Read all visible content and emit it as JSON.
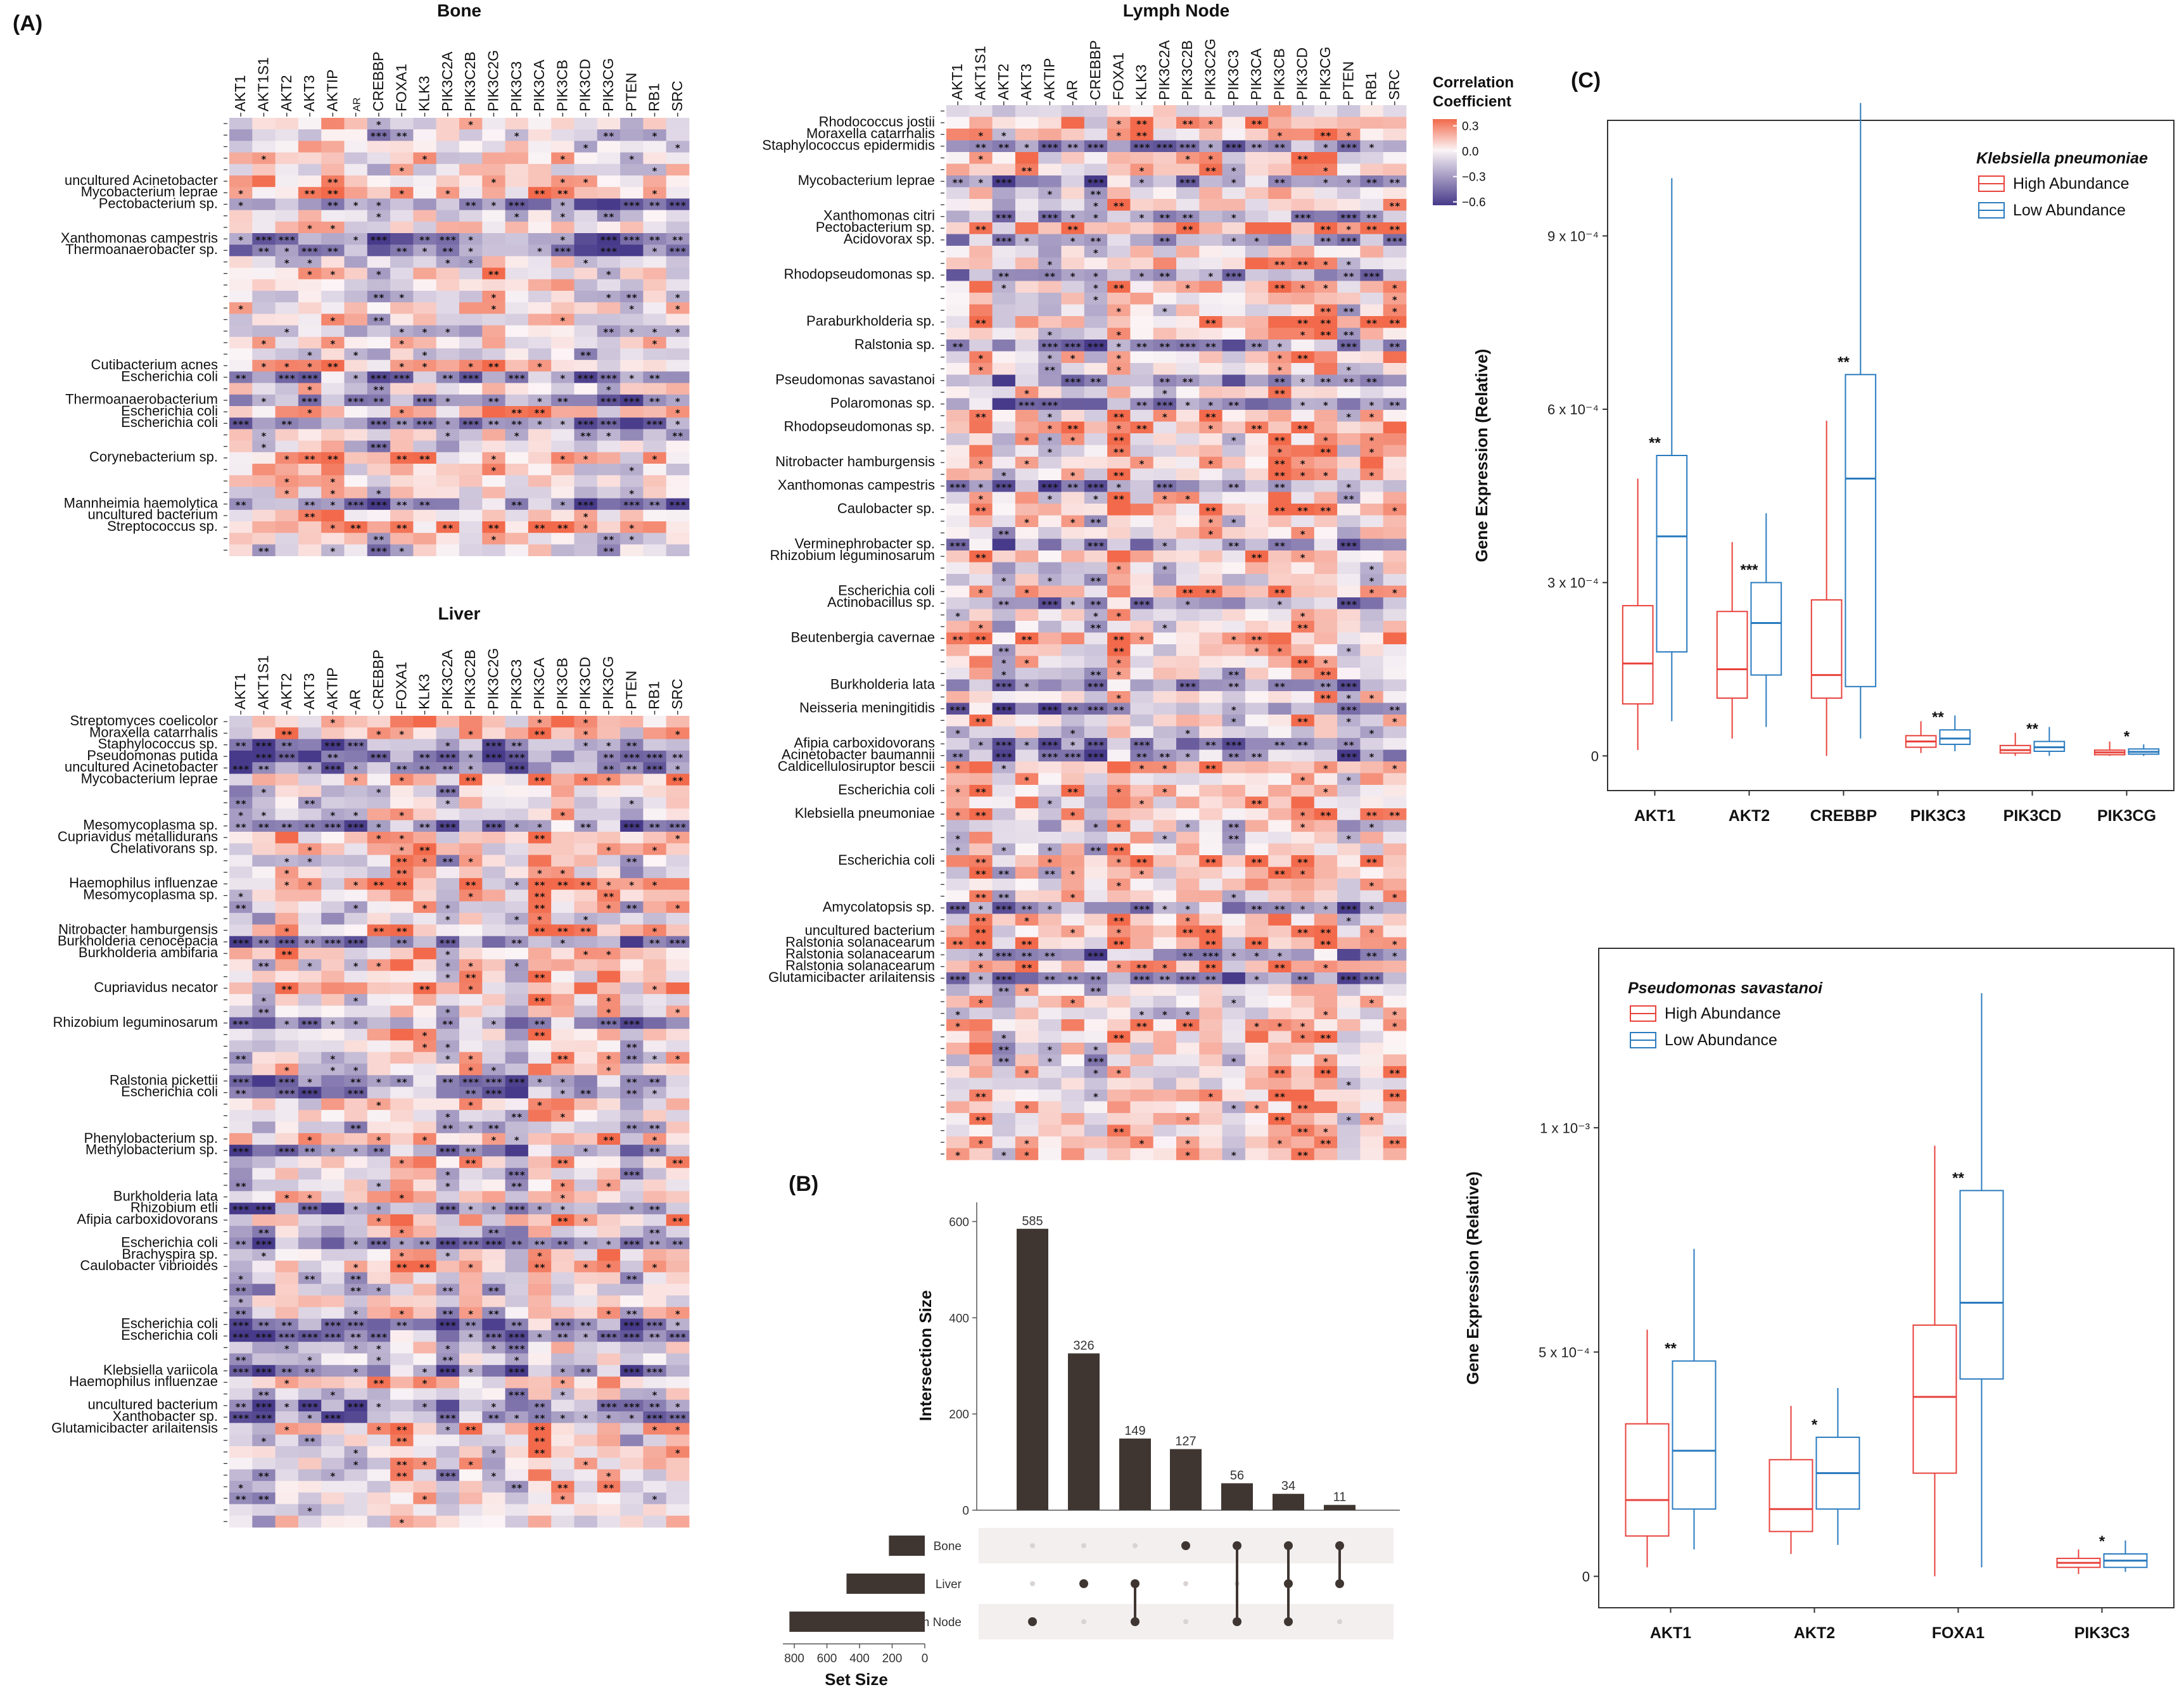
{
  "panel_labels": {
    "a": "(A)",
    "b": "(B)",
    "c": "(C)"
  },
  "legend": {
    "title_line1": "Correlation",
    "title_line2": "Coefficient",
    "ticks": [
      "0.3",
      "0.0",
      "−0.3",
      "−0.6"
    ],
    "colors": {
      "pos": "#f26a4b",
      "zero": "#fbf4f6",
      "neg": "#473a8a"
    }
  },
  "chart_data": [
    {
      "type": "heatmap",
      "title": "Bone",
      "genes": [
        "AKT1",
        "AKT1S1",
        "AKT2",
        "AKT3",
        "AKTIP",
        "AR",
        "CREBBP",
        "FOXA1",
        "KLK3",
        "PIK3C2A",
        "PIK3C2B",
        "PIK3C2G",
        "PIK3C3",
        "PIK3CA",
        "PIK3CB",
        "PIK3CD",
        "PIK3CG",
        "PTEN",
        "RB1",
        "SRC"
      ],
      "small_genes": [
        "AR"
      ],
      "row_count": 38,
      "labelled_rows": [
        {
          "row": 5,
          "label": "uncultured Acinetobacter"
        },
        {
          "row": 6,
          "label": "Mycobacterium leprae"
        },
        {
          "row": 7,
          "label": "Pectobacterium sp."
        },
        {
          "row": 10,
          "label": "Xanthomonas campestris"
        },
        {
          "row": 11,
          "label": "Thermoanaerobacter sp."
        },
        {
          "row": 21,
          "label": "Cutibacterium acnes"
        },
        {
          "row": 22,
          "label": "Escherichia coli"
        },
        {
          "row": 24,
          "label": "Thermoanaerobacterium"
        },
        {
          "row": 25,
          "label": "Escherichia coli"
        },
        {
          "row": 26,
          "label": "Escherichia coli"
        },
        {
          "row": 29,
          "label": "Corynebacterium sp."
        },
        {
          "row": 33,
          "label": "Mannheimia haemolytica"
        },
        {
          "row": 34,
          "label": "uncultured bacterium"
        },
        {
          "row": 35,
          "label": "Streptococcus sp."
        }
      ]
    },
    {
      "type": "heatmap",
      "title": "Liver",
      "genes": [
        "AKT1",
        "AKT1S1",
        "AKT2",
        "AKT3",
        "AKTIP",
        "AR",
        "CREBBP",
        "FOXA1",
        "KLK3",
        "PIK3C2A",
        "PIK3C2B",
        "PIK3C2G",
        "PIK3C3",
        "PIK3CA",
        "PIK3CB",
        "PIK3CD",
        "PIK3CG",
        "PTEN",
        "RB1",
        "SRC"
      ],
      "small_genes": [],
      "row_count": 70,
      "labelled_rows": [
        {
          "row": 0,
          "label": "Streptomyces coelicolor"
        },
        {
          "row": 1,
          "label": "Moraxella catarrhalis"
        },
        {
          "row": 2,
          "label": "Staphylococcus sp."
        },
        {
          "row": 3,
          "label": "Pseudomonas putida"
        },
        {
          "row": 4,
          "label": "uncultured Acinetobacter"
        },
        {
          "row": 5,
          "label": "Mycobacterium leprae"
        },
        {
          "row": 9,
          "label": "Mesomycoplasma sp."
        },
        {
          "row": 10,
          "label": "Cupriavidus metallidurans"
        },
        {
          "row": 11,
          "label": "Chelativorans sp."
        },
        {
          "row": 14,
          "label": "Haemophilus influenzae"
        },
        {
          "row": 15,
          "label": "Mesomycoplasma sp."
        },
        {
          "row": 18,
          "label": "Nitrobacter hamburgensis"
        },
        {
          "row": 19,
          "label": "Burkholderia cenocepacia"
        },
        {
          "row": 20,
          "label": "Burkholderia ambifaria"
        },
        {
          "row": 23,
          "label": "Cupriavidus necator"
        },
        {
          "row": 26,
          "label": "Rhizobium leguminosarum"
        },
        {
          "row": 31,
          "label": "Ralstonia pickettii"
        },
        {
          "row": 32,
          "label": "Escherichia coli"
        },
        {
          "row": 36,
          "label": "Phenylobacterium sp."
        },
        {
          "row": 37,
          "label": "Methylobacterium sp."
        },
        {
          "row": 41,
          "label": "Burkholderia lata"
        },
        {
          "row": 42,
          "label": "Rhizobium etli"
        },
        {
          "row": 43,
          "label": "Afipia carboxidovorans"
        },
        {
          "row": 45,
          "label": "Escherichia coli"
        },
        {
          "row": 46,
          "label": "Brachyspira sp."
        },
        {
          "row": 47,
          "label": "Caulobacter vibrioides"
        },
        {
          "row": 52,
          "label": "Escherichia coli"
        },
        {
          "row": 53,
          "label": "Escherichia coli"
        },
        {
          "row": 56,
          "label": "Klebsiella variicola"
        },
        {
          "row": 57,
          "label": "Haemophilus influenzae"
        },
        {
          "row": 59,
          "label": "uncultured bacterium"
        },
        {
          "row": 60,
          "label": "Xanthobacter sp."
        },
        {
          "row": 61,
          "label": "Glutamicibacter arilaitensis"
        }
      ]
    },
    {
      "type": "heatmap",
      "title": "Lymph Node",
      "genes": [
        "AKT1",
        "AKT1S1",
        "AKT2",
        "AKT3",
        "AKTIP",
        "AR",
        "CREBBP",
        "FOXA1",
        "KLK3",
        "PIK3C2A",
        "PIK3C2B",
        "PIK3C2G",
        "PIK3C3",
        "PIK3CA",
        "PIK3CB",
        "PIK3CD",
        "PIK3CG",
        "PTEN",
        "RB1",
        "SRC"
      ],
      "small_genes": [],
      "row_count": 90,
      "labelled_rows": [
        {
          "row": 1,
          "label": "Rhodococcus jostii"
        },
        {
          "row": 2,
          "label": "Moraxella catarrhalis"
        },
        {
          "row": 3,
          "label": "Staphylococcus epidermidis"
        },
        {
          "row": 6,
          "label": "Mycobacterium leprae"
        },
        {
          "row": 9,
          "label": "Xanthomonas citri"
        },
        {
          "row": 10,
          "label": "Pectobacterium sp."
        },
        {
          "row": 11,
          "label": "Acidovorax sp."
        },
        {
          "row": 14,
          "label": "Rhodopseudomonas sp."
        },
        {
          "row": 18,
          "label": "Paraburkholderia sp."
        },
        {
          "row": 20,
          "label": "Ralstonia sp."
        },
        {
          "row": 23,
          "label": "Pseudomonas savastanoi"
        },
        {
          "row": 25,
          "label": "Polaromonas sp."
        },
        {
          "row": 27,
          "label": "Rhodopseudomonas sp."
        },
        {
          "row": 30,
          "label": "Nitrobacter hamburgensis"
        },
        {
          "row": 32,
          "label": "Xanthomonas campestris"
        },
        {
          "row": 34,
          "label": "Caulobacter sp."
        },
        {
          "row": 37,
          "label": "Verminephrobacter sp."
        },
        {
          "row": 38,
          "label": "Rhizobium leguminosarum"
        },
        {
          "row": 41,
          "label": "Escherichia coli"
        },
        {
          "row": 42,
          "label": "Actinobacillus sp."
        },
        {
          "row": 45,
          "label": "Beutenbergia cavernae"
        },
        {
          "row": 49,
          "label": "Burkholderia lata"
        },
        {
          "row": 51,
          "label": "Neisseria meningitidis"
        },
        {
          "row": 54,
          "label": "Afipia carboxidovorans"
        },
        {
          "row": 55,
          "label": "Acinetobacter baumannii"
        },
        {
          "row": 56,
          "label": "Caldicellulosiruptor bescii"
        },
        {
          "row": 58,
          "label": "Escherichia coli"
        },
        {
          "row": 60,
          "label": "Klebsiella pneumoniae"
        },
        {
          "row": 64,
          "label": "Escherichia coli"
        },
        {
          "row": 68,
          "label": "Amycolatopsis sp."
        },
        {
          "row": 70,
          "label": "uncultured bacterium"
        },
        {
          "row": 71,
          "label": "Ralstonia solanacearum"
        },
        {
          "row": 72,
          "label": "Ralstonia solanacearum"
        },
        {
          "row": 73,
          "label": "Ralstonia solanacearum"
        },
        {
          "row": 74,
          "label": "Glutamicibacter arilaitensis"
        }
      ]
    },
    {
      "type": "bar",
      "subtype": "upset",
      "intersection_sizes": [
        585,
        326,
        149,
        127,
        56,
        34,
        11
      ],
      "intersection_sets": [
        [
          "Lymph Node"
        ],
        [
          "Liver"
        ],
        [
          "Liver",
          "Lymph Node"
        ],
        [
          "Bone"
        ],
        [
          "Bone",
          "Lymph Node"
        ],
        [
          "Bone",
          "Liver",
          "Lymph Node"
        ],
        [
          "Bone",
          "Liver"
        ]
      ],
      "sets": [
        "Bone",
        "Liver",
        "Lymph Node"
      ],
      "set_sizes": [
        220,
        480,
        830
      ],
      "ylabel": "Intersection Size",
      "yticks": [
        "0",
        "200",
        "400",
        "600"
      ],
      "ylim": [
        0,
        640
      ],
      "xlabel_sets": "Set Size",
      "set_size_ticks": [
        "800",
        "600",
        "400",
        "200",
        "0"
      ],
      "set_size_max": 870
    },
    {
      "type": "box",
      "title": "Klebsiella pneumoniae",
      "series_names": [
        "High Abundance",
        "Low Abundance"
      ],
      "series_colors": [
        "#e8423c",
        "#2a7bbf"
      ],
      "ylabel": "Gene Expression (Relative)",
      "ylim": [
        -6e-05,
        0.0011
      ],
      "yticks": [
        {
          "value": 0,
          "label": "0"
        },
        {
          "value": 0.0003,
          "label": "3 x 10⁻⁴"
        },
        {
          "value": 0.0006,
          "label": "6 x 10⁻⁴"
        },
        {
          "value": 0.0009,
          "label": "9 x 10⁻⁴"
        }
      ],
      "categories": [
        "AKT1",
        "AKT2",
        "CREBBP",
        "PIK3C3",
        "PIK3CD",
        "PIK3CG"
      ],
      "significance": [
        "**",
        "***",
        "**",
        "**",
        "**",
        "*"
      ],
      "boxes": {
        "high": [
          [
            1e-05,
            9e-05,
            0.00016,
            0.00026,
            0.00048
          ],
          [
            3e-05,
            0.0001,
            0.00015,
            0.00025,
            0.00037
          ],
          [
            0.0,
            0.0001,
            0.00014,
            0.00027,
            0.00058
          ],
          [
            5e-06,
            1.5e-05,
            2.5e-05,
            3.5e-05,
            6e-05
          ],
          [
            0.0,
            5e-06,
            1e-05,
            1.8e-05,
            4e-05
          ],
          [
            0.0,
            2e-06,
            6e-06,
            1e-05,
            2.5e-05
          ]
        ],
        "low": [
          [
            6e-05,
            0.00018,
            0.00038,
            0.00052,
            0.001
          ],
          [
            5e-05,
            0.00014,
            0.00023,
            0.0003,
            0.00042
          ],
          [
            3e-05,
            0.00012,
            0.00048,
            0.00066,
            0.00113
          ],
          [
            8e-06,
            2e-05,
            3e-05,
            4.5e-05,
            7e-05
          ],
          [
            0.0,
            8e-06,
            1.5e-05,
            2.5e-05,
            5e-05
          ],
          [
            0.0,
            3e-06,
            7e-06,
            1.2e-05,
            2e-05
          ]
        ]
      }
    },
    {
      "type": "box",
      "title": "Pseudomonas savastanoi",
      "series_names": [
        "High Abundance",
        "Low Abundance"
      ],
      "series_colors": [
        "#e8423c",
        "#2a7bbf"
      ],
      "ylabel": "Gene Expression (Relative)",
      "ylim": [
        -7e-05,
        0.0014
      ],
      "yticks": [
        {
          "value": 0,
          "label": "0"
        },
        {
          "value": 0.0005,
          "label": "5 x 10⁻⁴"
        },
        {
          "value": 0.001,
          "label": "1 x 10⁻³"
        }
      ],
      "categories": [
        "AKT1",
        "AKT2",
        "FOXA1",
        "PIK3C3"
      ],
      "significance": [
        "**",
        "*",
        "**",
        "*"
      ],
      "boxes": {
        "high": [
          [
            2e-05,
            9e-05,
            0.00017,
            0.00034,
            0.00055
          ],
          [
            5e-05,
            0.0001,
            0.00015,
            0.00026,
            0.00038
          ],
          [
            0.0,
            0.00023,
            0.0004,
            0.00056,
            0.00096
          ],
          [
            5e-06,
            2e-05,
            3e-05,
            4e-05,
            6e-05
          ]
        ],
        "low": [
          [
            6e-05,
            0.00015,
            0.00028,
            0.00048,
            0.00073
          ],
          [
            7e-05,
            0.00015,
            0.00023,
            0.00031,
            0.00042
          ],
          [
            2e-05,
            0.00044,
            0.00061,
            0.00086,
            0.0013
          ],
          [
            1e-05,
            2e-05,
            3.5e-05,
            5e-05,
            8e-05
          ]
        ]
      }
    }
  ]
}
